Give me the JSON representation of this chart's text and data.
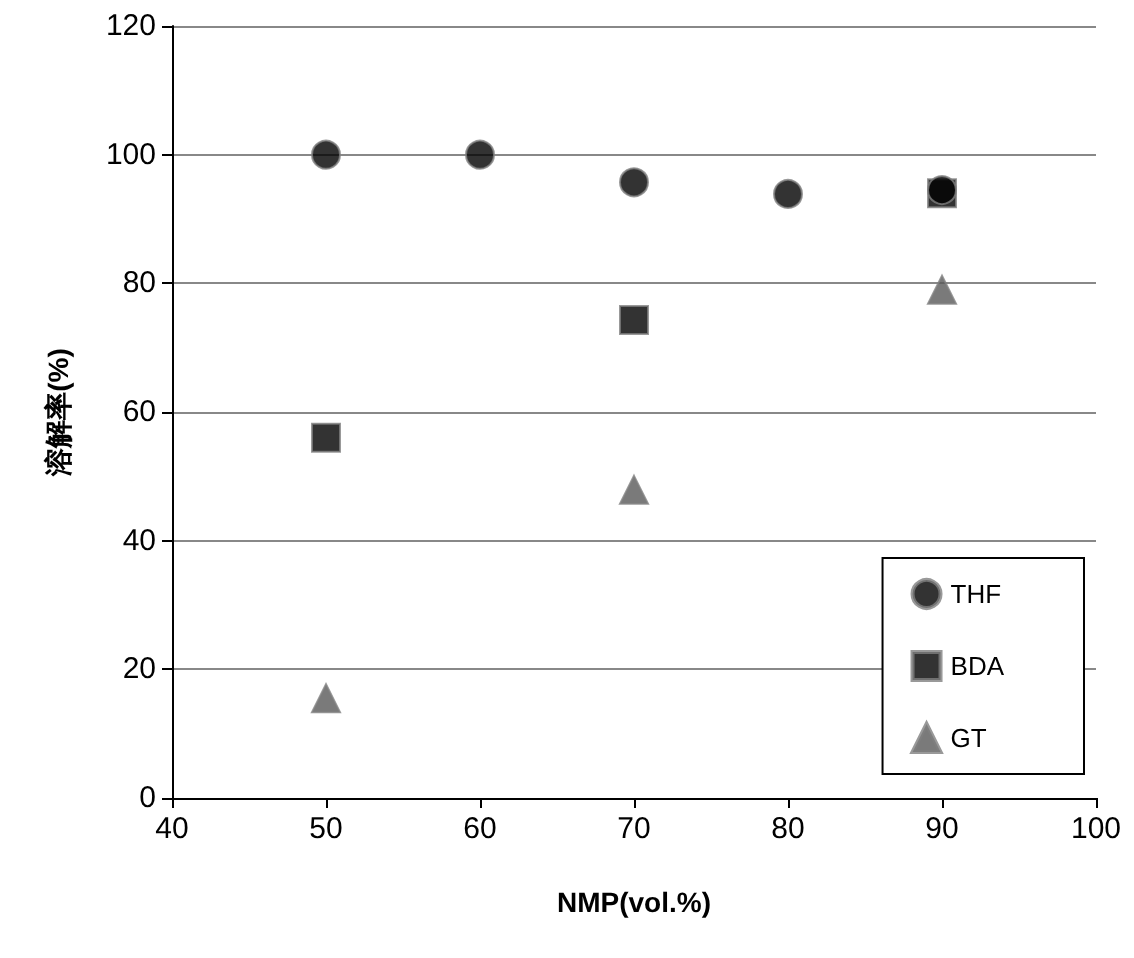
{
  "chart_data": {
    "type": "scatter",
    "xlabel": "NMP(vol.%)",
    "ylabel": "溶解率(%)",
    "xlim": [
      40,
      100
    ],
    "xticks": [
      40,
      50,
      60,
      70,
      80,
      90,
      100
    ],
    "ylim": [
      0,
      120
    ],
    "yticks": [
      0,
      20,
      40,
      60,
      80,
      100,
      120
    ],
    "grid": "y",
    "legend": "bottom right",
    "series": [
      {
        "name": "THF",
        "color": "#000000",
        "marker": "circle",
        "x": [
          50,
          60,
          70,
          80,
          90
        ],
        "values": [
          100,
          100,
          95.7,
          93.9,
          94.5
        ]
      },
      {
        "name": "BDA",
        "color": "#000000",
        "marker": "square",
        "x": [
          50,
          70,
          90
        ],
        "values": [
          56,
          74.3,
          94
        ]
      },
      {
        "name": "GT",
        "color": "#595959",
        "marker": "triangle",
        "x": [
          50,
          70,
          90
        ],
        "values": [
          15.5,
          47.9,
          79
        ]
      }
    ]
  }
}
